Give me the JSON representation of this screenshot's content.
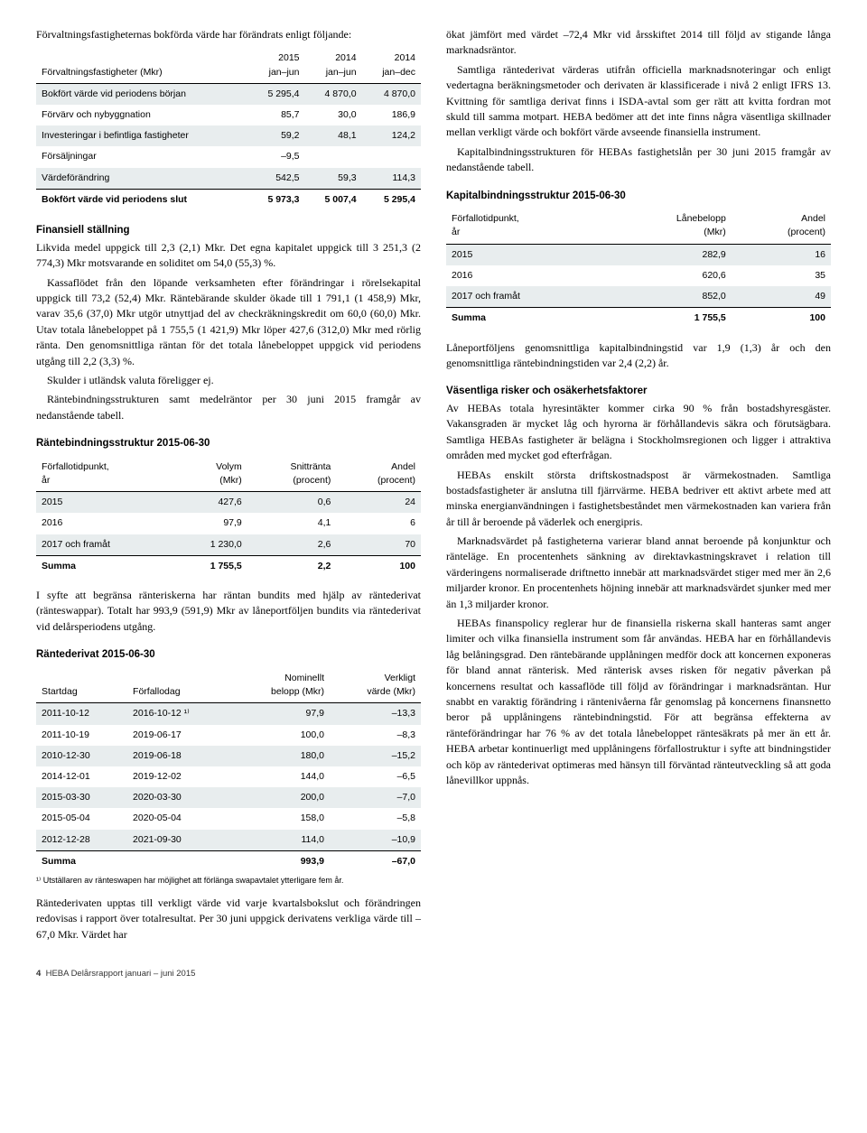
{
  "left": {
    "intro": "Förvaltningsfastigheternas bokförda värde har förändrats enligt följande:",
    "table1": {
      "headers": [
        "Förvaltningsfastigheter (Mkr)",
        "2015\njan–jun",
        "2014\njan–jun",
        "2014\njan–dec"
      ],
      "rows": [
        [
          "Bokfört värde vid periodens början",
          "5 295,4",
          "4 870,0",
          "4 870,0"
        ],
        [
          "Förvärv och nybyggnation",
          "85,7",
          "30,0",
          "186,9"
        ],
        [
          "Investeringar i befintliga fastigheter",
          "59,2",
          "48,1",
          "124,2"
        ],
        [
          "Försäljningar",
          "–9,5",
          "",
          ""
        ],
        [
          "Värdeförändring",
          "542,5",
          "59,3",
          "114,3"
        ]
      ],
      "total": [
        "Bokfört värde vid periodens slut",
        "5 973,3",
        "5 007,4",
        "5 295,4"
      ]
    },
    "fs_title": "Finansiell ställning",
    "fs_p1": "Likvida medel uppgick till 2,3 (2,1) Mkr. Det egna kapitalet uppgick till 3 251,3 (2 774,3) Mkr motsvarande en soliditet om 54,0 (55,3) %.",
    "fs_p2": "Kassaflödet från den löpande verksamheten efter förändringar i rörelsekapital uppgick till 73,2 (52,4) Mkr. Räntebärande skulder ökade till 1 791,1 (1 458,9) Mkr, varav 35,6 (37,0) Mkr utgör utnyttjad del av checkräkningskredit om 60,0 (60,0) Mkr. Utav totala lånebeloppet på 1 755,5 (1 421,9) Mkr löper 427,6 (312,0) Mkr med rörlig ränta. Den genomsnittliga räntan för det totala lånebeloppet uppgick vid periodens utgång till 2,2 (3,3) %.",
    "fs_p3": "Skulder i utländsk valuta föreligger ej.",
    "fs_p4": "Räntebindningsstrukturen samt medelräntor per 30 juni 2015 framgår av nedanstående tabell.",
    "table2_title": "Räntebindningsstruktur 2015-06-30",
    "table2": {
      "headers": [
        "Förfallotidpunkt,\når",
        "Volym\n(Mkr)",
        "Snittränta\n(procent)",
        "Andel\n(procent)"
      ],
      "rows": [
        [
          "2015",
          "427,6",
          "0,6",
          "24"
        ],
        [
          "2016",
          "97,9",
          "4,1",
          "6"
        ],
        [
          "2017 och framåt",
          "1 230,0",
          "2,6",
          "70"
        ]
      ],
      "total": [
        "Summa",
        "1 755,5",
        "2,2",
        "100"
      ]
    },
    "mid_p": "I syfte att begränsa ränteriskerna har räntan bundits med hjälp av räntederivat (ränteswappar). Totalt har 993,9 (591,9) Mkr av låneportföljen bundits via räntederivat vid delårsperiodens utgång.",
    "table3_title": "Räntederivat 2015-06-30",
    "table3": {
      "headers": [
        "Startdag",
        "Förfallodag",
        "Nominellt\nbelopp (Mkr)",
        "Verkligt\nvärde (Mkr)"
      ],
      "rows": [
        [
          "2011-10-12",
          "2016-10-12 ¹⁾",
          "97,9",
          "–13,3"
        ],
        [
          "2011-10-19",
          "2019-06-17",
          "100,0",
          "–8,3"
        ],
        [
          "2010-12-30",
          "2019-06-18",
          "180,0",
          "–15,2"
        ],
        [
          "2014-12-01",
          "2019-12-02",
          "144,0",
          "–6,5"
        ],
        [
          "2015-03-30",
          "2020-03-30",
          "200,0",
          "–7,0"
        ],
        [
          "2015-05-04",
          "2020-05-04",
          "158,0",
          "–5,8"
        ],
        [
          "2012-12-28",
          "2021-09-30",
          "114,0",
          "–10,9"
        ]
      ],
      "total": [
        "Summa",
        "",
        "993,9",
        "–67,0"
      ]
    },
    "footnote": "¹⁾ Utställaren av ränteswapen har möjlighet att förlänga swapavtalet ytterligare fem år.",
    "end_p": "Räntederivaten upptas till verkligt värde vid varje kvartalsbokslut och förändringen redovisas i rapport över totalresultat. Per 30 juni uppgick derivatens verkliga värde till –67,0 Mkr. Värdet har"
  },
  "right": {
    "p1": "ökat jämfört med värdet –72,4 Mkr vid årsskiftet 2014 till följd av stigande långa marknadsräntor.",
    "p2": "Samtliga räntederivat värderas utifrån officiella marknadsnoteringar och enligt vedertagna beräkningsmetoder och derivaten är klassificerade i nivå 2 enligt IFRS 13. Kvittning för samtliga derivat finns i ISDA-avtal som ger rätt att kvitta fordran mot skuld till samma motpart. HEBA bedömer att det inte finns några väsentliga skillnader mellan verkligt värde och bokfört värde avseende finansiella instrument.",
    "p3": "Kapitalbindningsstrukturen för HEBAs fastighetslån per 30 juni 2015 framgår av nedanstående tabell.",
    "table4_title": "Kapitalbindningsstruktur 2015-06-30",
    "table4": {
      "headers": [
        "Förfallotidpunkt,\når",
        "Lånebelopp\n(Mkr)",
        "Andel\n(procent)"
      ],
      "rows": [
        [
          "2015",
          "282,9",
          "16"
        ],
        [
          "2016",
          "620,6",
          "35"
        ],
        [
          "2017 och framåt",
          "852,0",
          "49"
        ]
      ],
      "total": [
        "Summa",
        "1 755,5",
        "100"
      ]
    },
    "p4": "Låneportföljens genomsnittliga kapitalbindningstid var 1,9 (1,3) år och den genomsnittliga räntebindningstiden var 2,4 (2,2) år.",
    "risk_title": "Väsentliga risker och osäkerhetsfaktorer",
    "risk_p1": "Av HEBAs totala hyresintäkter kommer cirka 90 % från bostadshyresgäster. Vakansgraden är mycket låg och hyrorna är förhållandevis säkra och förutsägbara. Samtliga HEBAs fastigheter är belägna i Stockholmsregionen och ligger i attraktiva områden med mycket god efterfrågan.",
    "risk_p2": "HEBAs enskilt största driftskostnadspost är värmekostnaden. Samtliga bostadsfastigheter är anslutna till fjärrvärme. HEBA bedriver ett aktivt arbete med att minska energianvändningen i fastighetsbeståndet men värmekostnaden kan variera från år till år beroende på väderlek och energipris.",
    "risk_p3": "Marknadsvärdet på fastigheterna varierar bland annat beroende på konjunktur och ränteläge. En procentenhets sänkning av direktavkastningskravet i relation till värderingens normaliserade driftnetto innebär att marknadsvärdet stiger med mer än 2,6 miljarder kronor. En procentenhets höjning innebär att marknadsvärdet sjunker med mer än 1,3 miljarder kronor.",
    "risk_p4": "HEBAs finanspolicy reglerar hur de finansiella riskerna skall hanteras samt anger limiter och vilka finansiella instrument som får användas. HEBA har en förhållandevis låg belåningsgrad. Den räntebärande upplåningen medför dock att koncernen exponeras för bland annat ränterisk. Med ränterisk avses risken för negativ påverkan på koncernens resultat och kassaflöde till följd av förändringar i marknadsräntan. Hur snabbt en varaktig förändring i räntenivåerna får genomslag på koncernens finansnetto beror på upplåningens räntebindningstid. För att begränsa effekterna av ränteförändringar har 76 % av det totala lånebeloppet räntesäkrats på mer än ett år. HEBA arbetar kontinuerligt med upplåningens förfallostruktur i syfte att bindningstider och köp av räntederivat optimeras med hänsyn till förväntad ränteutveckling så att goda lånevillkor uppnås."
  },
  "footer": {
    "num": "4",
    "text": "HEBA Delårsrapport januari – juni 2015"
  },
  "style": {
    "stripe_color": "#e8edee",
    "text_color": "#000000",
    "background": "#ffffff"
  }
}
